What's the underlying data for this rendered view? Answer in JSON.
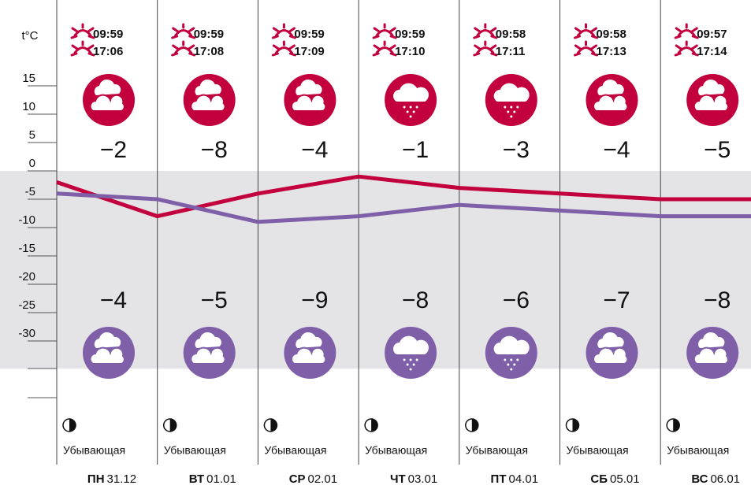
{
  "chart_data": {
    "type": "line",
    "unit_label": "t°C",
    "weekdays": [
      "ПН",
      "ВТ",
      "СР",
      "ЧТ",
      "ПТ",
      "СБ",
      "ВС"
    ],
    "categories": [
      "31.12",
      "01.01",
      "02.01",
      "03.01",
      "04.01",
      "05.01",
      "06.01"
    ],
    "sunrise": [
      "09:59",
      "09:59",
      "09:59",
      "09:59",
      "09:58",
      "09:58",
      "09:57"
    ],
    "sunset": [
      "17:06",
      "17:08",
      "17:09",
      "17:10",
      "17:11",
      "17:13",
      "17:14"
    ],
    "moon_phase": [
      "Убывающая",
      "Убывающая",
      "Убывающая",
      "Убывающая",
      "Убывающая",
      "Убывающая",
      "Убывающая"
    ],
    "icons": [
      "cloudy",
      "cloudy",
      "cloudy",
      "snow",
      "snow",
      "cloudy",
      "cloudy"
    ],
    "series": [
      {
        "color": "#c2003d",
        "values": [
          -2,
          -8,
          -4,
          -1,
          -3,
          -4,
          -5
        ],
        "value_labels": [
          "−2",
          "−8",
          "−4",
          "−1",
          "−3",
          "−4",
          "−5"
        ]
      },
      {
        "color": "#7e5fa8",
        "values": [
          -4,
          -5,
          -9,
          -8,
          -6,
          -7,
          -8
        ],
        "value_labels": [
          "−4",
          "−5",
          "−9",
          "−8",
          "−6",
          "−7",
          "−8"
        ]
      }
    ],
    "ylim": [
      -40,
      20
    ],
    "yticks": [
      15,
      10,
      5,
      0,
      -5,
      -10,
      -15,
      -20,
      -25,
      -30
    ],
    "grid": true
  }
}
